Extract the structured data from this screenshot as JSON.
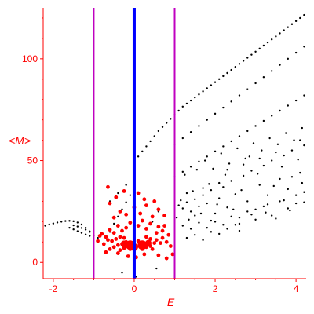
{
  "chart_data": {
    "type": "scatter",
    "xlabel": "E",
    "ylabel": "<M>",
    "xlim": [
      -2.25,
      4.25
    ],
    "ylim": [
      -8,
      125
    ],
    "x_ticks": [
      "-2",
      "0",
      "2",
      "4"
    ],
    "y_ticks": [
      "0",
      "50",
      "100"
    ],
    "grid": false,
    "legend": "none",
    "vertical_lines": [
      {
        "x": -1,
        "color": "#c000c0"
      },
      {
        "x": 0,
        "color": "#0000ff"
      },
      {
        "x": 1,
        "color": "#c000c0"
      }
    ],
    "series": [
      {
        "color": "#000000",
        "points": [
          [
            -2.2,
            18.0
          ],
          [
            -2.1,
            18.6
          ],
          [
            -2.0,
            19.1
          ],
          [
            -1.9,
            19.6
          ],
          [
            -1.8,
            20.0
          ],
          [
            -1.7,
            20.3
          ],
          [
            -1.6,
            20.4
          ],
          [
            -1.5,
            20.2
          ],
          [
            -1.4,
            19.6
          ],
          [
            -1.3,
            18.6
          ],
          [
            -1.2,
            17.0
          ],
          [
            -1.1,
            15.0
          ],
          [
            -1.0,
            13.2
          ],
          [
            -0.9,
            12.0
          ],
          [
            -1.6,
            17.0
          ],
          [
            -1.5,
            16.2
          ],
          [
            -1.4,
            15.3
          ],
          [
            -1.3,
            14.5
          ],
          [
            -1.2,
            13.7
          ],
          [
            -1.1,
            13.0
          ],
          [
            -1.5,
            18.2
          ],
          [
            -1.4,
            17.6
          ],
          [
            -1.3,
            16.9
          ],
          [
            -1.2,
            16.1
          ],
          [
            -1.1,
            15.2
          ],
          [
            -0.7,
            12.5
          ],
          [
            -0.6,
            15.0
          ],
          [
            -0.5,
            19.0
          ],
          [
            -0.4,
            22.5
          ],
          [
            -0.3,
            26.0
          ],
          [
            -0.2,
            29.5
          ],
          [
            -0.1,
            33.0
          ],
          [
            0.0,
            36.0
          ],
          [
            -0.6,
            30.0
          ],
          [
            -0.4,
            34.0
          ],
          [
            -0.2,
            38.0
          ],
          [
            0.0,
            41.5
          ],
          [
            0.1,
            52.0
          ],
          [
            0.2,
            54.5
          ],
          [
            0.3,
            57.0
          ],
          [
            0.4,
            59.5
          ],
          [
            0.5,
            62.0
          ],
          [
            0.6,
            64.5
          ],
          [
            0.7,
            66.5
          ],
          [
            0.8,
            68.5
          ],
          [
            0.9,
            70.5
          ],
          [
            1.0,
            72.5
          ],
          [
            1.1,
            74.5
          ],
          [
            1.2,
            76.5
          ],
          [
            1.3,
            78.0
          ],
          [
            1.4,
            79.5
          ],
          [
            1.5,
            81.0
          ],
          [
            1.6,
            82.5
          ],
          [
            1.7,
            84.0
          ],
          [
            1.8,
            85.5
          ],
          [
            1.9,
            87.0
          ],
          [
            2.0,
            88.5
          ],
          [
            2.1,
            90.0
          ],
          [
            2.2,
            91.5
          ],
          [
            2.3,
            93.0
          ],
          [
            2.4,
            94.5
          ],
          [
            2.5,
            96.0
          ],
          [
            2.6,
            97.5
          ],
          [
            2.7,
            99.0
          ],
          [
            2.8,
            100.5
          ],
          [
            2.9,
            102.0
          ],
          [
            3.0,
            103.5
          ],
          [
            3.1,
            105.0
          ],
          [
            3.2,
            106.5
          ],
          [
            3.3,
            108.0
          ],
          [
            3.4,
            109.5
          ],
          [
            3.5,
            111.0
          ],
          [
            3.6,
            112.5
          ],
          [
            3.7,
            114.0
          ],
          [
            3.8,
            115.5
          ],
          [
            3.9,
            117.0
          ],
          [
            4.0,
            118.5
          ],
          [
            4.1,
            120.0
          ],
          [
            4.2,
            121.5
          ],
          [
            1.0,
            58.0
          ],
          [
            1.2,
            61.0
          ],
          [
            1.4,
            64.0
          ],
          [
            1.6,
            67.0
          ],
          [
            1.8,
            70.0
          ],
          [
            2.0,
            73.0
          ],
          [
            2.2,
            76.0
          ],
          [
            2.4,
            79.0
          ],
          [
            2.6,
            82.0
          ],
          [
            2.8,
            85.0
          ],
          [
            3.0,
            88.0
          ],
          [
            3.2,
            91.0
          ],
          [
            3.4,
            94.0
          ],
          [
            3.6,
            97.0
          ],
          [
            3.8,
            100.0
          ],
          [
            4.0,
            103.0
          ],
          [
            4.2,
            106.0
          ],
          [
            1.0,
            42.0
          ],
          [
            1.2,
            44.5
          ],
          [
            1.4,
            47.0
          ],
          [
            1.6,
            49.5
          ],
          [
            1.8,
            52.0
          ],
          [
            2.0,
            54.5
          ],
          [
            2.2,
            57.0
          ],
          [
            2.4,
            59.5
          ],
          [
            2.6,
            62.0
          ],
          [
            2.8,
            64.5
          ],
          [
            3.0,
            67.0
          ],
          [
            3.2,
            69.5
          ],
          [
            3.4,
            72.0
          ],
          [
            3.6,
            74.5
          ],
          [
            3.8,
            77.0
          ],
          [
            4.0,
            79.5
          ],
          [
            4.2,
            82.0
          ],
          [
            1.1,
            28.0
          ],
          [
            1.2,
            26.5
          ],
          [
            1.3,
            29.5
          ],
          [
            1.4,
            25.0
          ],
          [
            1.5,
            31.0
          ],
          [
            1.6,
            27.5
          ],
          [
            1.7,
            33.0
          ],
          [
            1.8,
            29.0
          ],
          [
            1.9,
            35.5
          ],
          [
            2.0,
            24.0
          ],
          [
            2.1,
            31.5
          ],
          [
            2.2,
            37.0
          ],
          [
            2.3,
            27.0
          ],
          [
            2.4,
            40.0
          ],
          [
            2.5,
            33.5
          ],
          [
            2.6,
            22.0
          ],
          [
            2.7,
            42.5
          ],
          [
            2.8,
            30.0
          ],
          [
            2.9,
            45.0
          ],
          [
            3.0,
            26.0
          ],
          [
            3.1,
            38.0
          ],
          [
            3.2,
            47.5
          ],
          [
            3.3,
            33.0
          ],
          [
            3.4,
            50.0
          ],
          [
            3.5,
            21.5
          ],
          [
            3.6,
            41.0
          ],
          [
            3.7,
            52.5
          ],
          [
            3.8,
            36.0
          ],
          [
            3.9,
            55.0
          ],
          [
            4.0,
            29.0
          ],
          [
            4.1,
            44.0
          ],
          [
            4.2,
            57.5
          ],
          [
            1.3,
            34.0
          ],
          [
            1.5,
            23.0
          ],
          [
            1.7,
            36.5
          ],
          [
            1.9,
            20.5
          ],
          [
            2.1,
            39.0
          ],
          [
            2.3,
            45.5
          ],
          [
            2.5,
            18.5
          ],
          [
            2.7,
            48.0
          ],
          [
            2.9,
            23.5
          ],
          [
            3.1,
            51.0
          ],
          [
            3.3,
            28.5
          ],
          [
            3.5,
            54.0
          ],
          [
            3.7,
            30.5
          ],
          [
            3.9,
            42.0
          ],
          [
            4.1,
            60.0
          ],
          [
            4.2,
            34.5
          ],
          [
            1.05,
            22.0
          ],
          [
            1.15,
            30.5
          ],
          [
            1.35,
            21.0
          ],
          [
            1.45,
            35.0
          ],
          [
            1.65,
            24.0
          ],
          [
            1.85,
            38.5
          ],
          [
            2.05,
            28.5
          ],
          [
            2.25,
            43.0
          ],
          [
            2.45,
            26.0
          ],
          [
            2.65,
            35.5
          ],
          [
            2.85,
            52.0
          ],
          [
            3.05,
            43.5
          ],
          [
            3.25,
            24.5
          ],
          [
            3.45,
            37.5
          ],
          [
            3.65,
            47.0
          ],
          [
            3.85,
            25.5
          ],
          [
            4.05,
            50.5
          ],
          [
            4.15,
            39.0
          ],
          [
            1.2,
            18.0
          ],
          [
            1.4,
            16.5
          ],
          [
            1.6,
            19.5
          ],
          [
            1.8,
            17.0
          ],
          [
            2.0,
            20.0
          ],
          [
            2.2,
            18.5
          ],
          [
            2.4,
            22.5
          ],
          [
            2.6,
            19.0
          ],
          [
            2.8,
            25.0
          ],
          [
            3.0,
            21.0
          ],
          [
            3.2,
            27.5
          ],
          [
            3.4,
            23.0
          ],
          [
            3.6,
            30.0
          ],
          [
            3.8,
            26.5
          ],
          [
            4.0,
            33.0
          ],
          [
            4.2,
            29.5
          ],
          [
            1.3,
            12.0
          ],
          [
            1.5,
            13.5
          ],
          [
            1.7,
            11.0
          ],
          [
            1.9,
            15.0
          ],
          [
            2.1,
            14.0
          ],
          [
            2.3,
            16.5
          ],
          [
            2.6,
            15.5
          ],
          [
            1.25,
            43.0
          ],
          [
            1.55,
            45.5
          ],
          [
            1.75,
            50.0
          ],
          [
            1.95,
            46.0
          ],
          [
            2.15,
            53.5
          ],
          [
            2.35,
            48.5
          ],
          [
            2.55,
            56.0
          ],
          [
            2.75,
            51.0
          ],
          [
            2.95,
            58.5
          ],
          [
            3.15,
            55.0
          ],
          [
            3.35,
            61.0
          ],
          [
            3.55,
            58.0
          ],
          [
            3.75,
            63.5
          ],
          [
            3.95,
            60.0
          ],
          [
            4.15,
            66.0
          ],
          [
            0.05,
            -7.0
          ],
          [
            0.55,
            -3.0
          ],
          [
            -0.3,
            -5.0
          ],
          [
            0.45,
            20.0
          ],
          [
            0.6,
            25.0
          ]
        ]
      },
      {
        "color": "#ff0000",
        "points": [
          [
            -0.6,
            6.5
          ],
          [
            -0.5,
            7.5
          ],
          [
            -0.4,
            8.5
          ],
          [
            -0.35,
            6.0
          ],
          [
            -0.3,
            9.0
          ],
          [
            -0.25,
            7.0
          ],
          [
            -0.2,
            10.0
          ],
          [
            -0.15,
            8.0
          ],
          [
            -0.1,
            6.5
          ],
          [
            -0.05,
            9.5
          ],
          [
            0.05,
            7.5
          ],
          [
            0.1,
            10.5
          ],
          [
            0.15,
            8.5
          ],
          [
            0.2,
            6.5
          ],
          [
            0.25,
            9.0
          ],
          [
            0.3,
            7.5
          ],
          [
            0.35,
            10.0
          ],
          [
            0.4,
            8.0
          ],
          [
            0.45,
            6.5
          ],
          [
            0.5,
            9.5
          ],
          [
            -0.55,
            10.5
          ],
          [
            -0.45,
            11.5
          ],
          [
            -0.35,
            12.5
          ],
          [
            -0.25,
            12.0
          ],
          [
            0.3,
            12.5
          ],
          [
            0.4,
            11.5
          ],
          [
            0.55,
            11.0
          ],
          [
            -0.8,
            14.0
          ],
          [
            -0.7,
            12.5
          ],
          [
            -0.6,
            16.0
          ],
          [
            -0.5,
            14.5
          ],
          [
            -0.4,
            18.0
          ],
          [
            -0.3,
            15.5
          ],
          [
            -0.2,
            17.0
          ],
          [
            -0.1,
            19.5
          ],
          [
            0.1,
            18.0
          ],
          [
            0.2,
            20.5
          ],
          [
            0.3,
            16.5
          ],
          [
            0.4,
            19.0
          ],
          [
            0.55,
            14.5
          ],
          [
            0.6,
            17.5
          ],
          [
            0.7,
            15.5
          ],
          [
            0.75,
            18.0
          ],
          [
            -0.9,
            10.5
          ],
          [
            -0.85,
            13.0
          ],
          [
            -0.75,
            9.0
          ],
          [
            -0.65,
            11.0
          ],
          [
            0.65,
            9.5
          ],
          [
            0.7,
            12.0
          ],
          [
            0.8,
            10.0
          ],
          [
            0.85,
            13.5
          ],
          [
            0.9,
            8.0
          ],
          [
            -0.5,
            22.0
          ],
          [
            -0.35,
            25.0
          ],
          [
            -0.2,
            23.5
          ],
          [
            0.0,
            27.0
          ],
          [
            0.15,
            24.0
          ],
          [
            0.3,
            28.0
          ],
          [
            0.45,
            22.5
          ],
          [
            0.6,
            26.0
          ],
          [
            0.75,
            23.0
          ],
          [
            -0.6,
            29.0
          ],
          [
            -0.45,
            32.0
          ],
          [
            -0.25,
            35.0
          ],
          [
            0.1,
            34.0
          ],
          [
            0.25,
            31.0
          ],
          [
            0.5,
            30.0
          ],
          [
            -0.65,
            37.0
          ],
          [
            -0.15,
            3.0
          ],
          [
            0.05,
            2.5
          ],
          [
            0.25,
            4.0
          ],
          [
            -0.4,
            4.5
          ],
          [
            0.6,
            3.5
          ],
          [
            0.8,
            2.0
          ],
          [
            -0.7,
            5.0
          ],
          [
            0.95,
            4.0
          ]
        ]
      }
    ]
  }
}
